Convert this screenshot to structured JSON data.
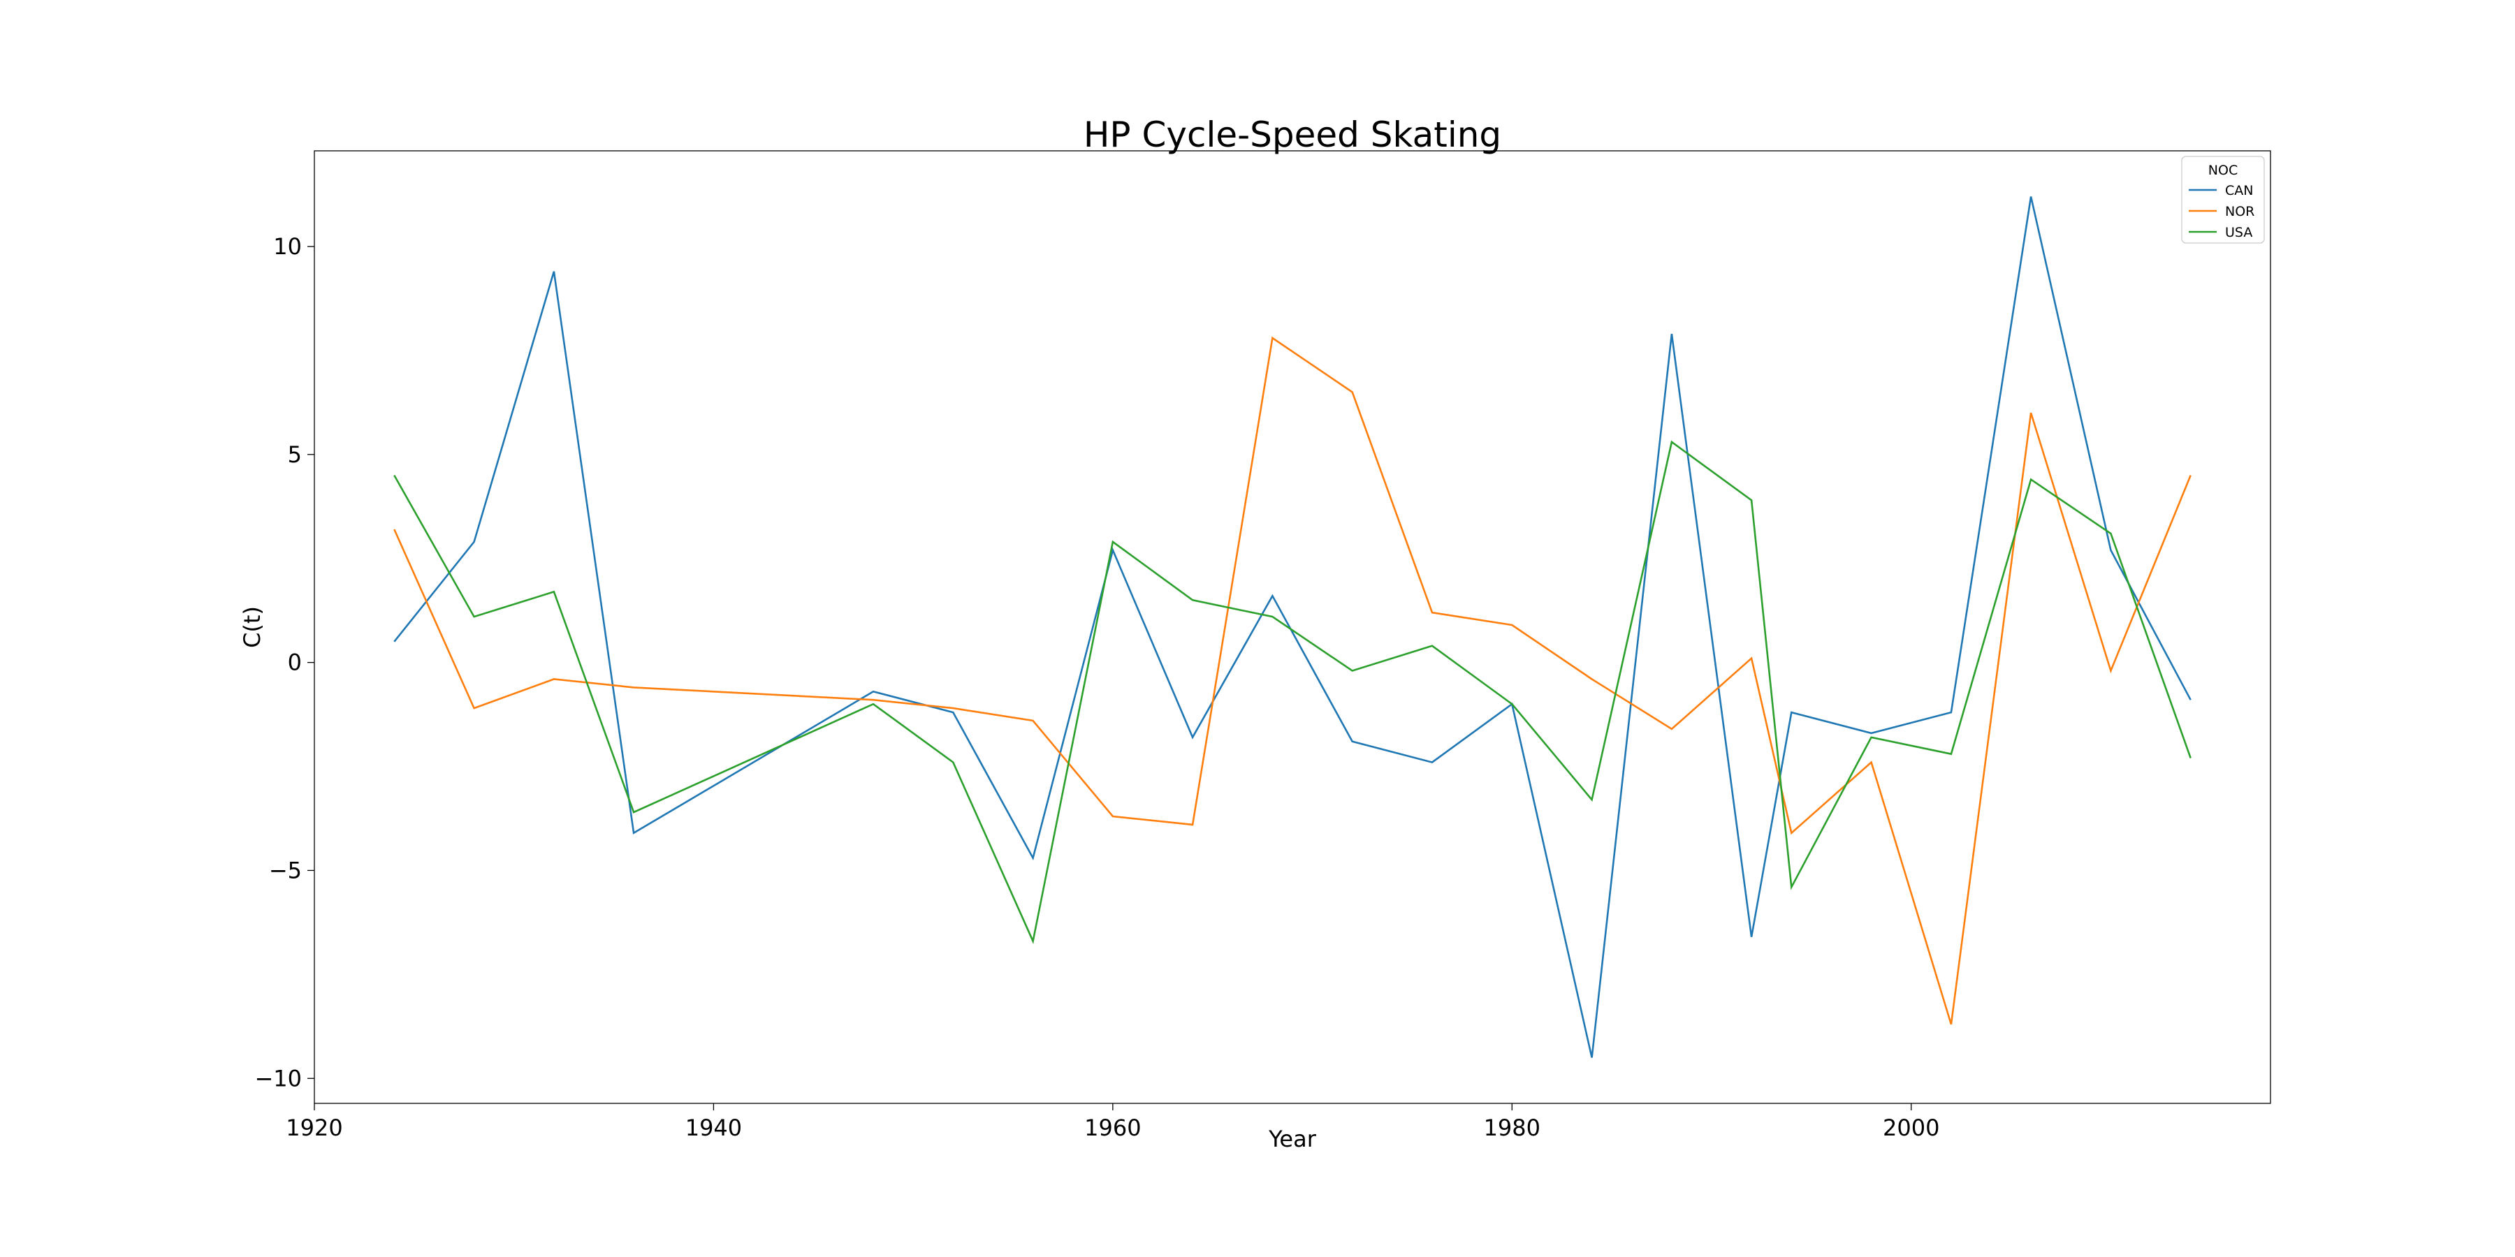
{
  "chart_data": {
    "type": "line",
    "title": "HP Cycle-Speed Skating",
    "xlabel": "Year",
    "ylabel": "C(t)",
    "xlim": [
      1920,
      2018
    ],
    "ylim": [
      -10.6,
      12.3
    ],
    "xticks": [
      1920,
      1940,
      1960,
      1980,
      2000
    ],
    "yticks": [
      -10,
      -5,
      0,
      5,
      10
    ],
    "grid": false,
    "legend": {
      "title": "NOC",
      "placement": "top-right"
    },
    "series": [
      {
        "name": "CAN",
        "color": "#1f77b4",
        "x": [
          1924,
          1928,
          1932,
          1936,
          1948,
          1952,
          1956,
          1960,
          1964,
          1968,
          1972,
          1976,
          1980,
          1984,
          1988,
          1992,
          1994,
          1998,
          2002,
          2006,
          2010,
          2014
        ],
        "y": [
          0.5,
          2.9,
          9.4,
          -4.1,
          -0.7,
          -1.2,
          -4.7,
          2.7,
          -1.8,
          1.6,
          -1.9,
          -2.4,
          -1.0,
          -9.5,
          7.9,
          -6.6,
          -1.2,
          -1.7,
          -1.2,
          11.2,
          2.7,
          -0.9
        ]
      },
      {
        "name": "NOR",
        "color": "#ff7f0e",
        "x": [
          1924,
          1928,
          1932,
          1936,
          1948,
          1952,
          1956,
          1960,
          1964,
          1968,
          1972,
          1976,
          1980,
          1984,
          1988,
          1992,
          1994,
          1998,
          2002,
          2006,
          2010,
          2014
        ],
        "y": [
          3.2,
          -1.1,
          -0.4,
          -0.6,
          -0.9,
          -1.1,
          -1.4,
          -3.7,
          -3.9,
          7.8,
          6.5,
          1.2,
          0.9,
          -0.4,
          -1.6,
          0.1,
          -4.1,
          -2.4,
          -8.7,
          6.0,
          -0.2,
          4.5
        ]
      },
      {
        "name": "USA",
        "color": "#2ca02c",
        "x": [
          1924,
          1928,
          1932,
          1936,
          1948,
          1952,
          1956,
          1960,
          1964,
          1968,
          1972,
          1976,
          1980,
          1984,
          1988,
          1992,
          1994,
          1998,
          2002,
          2006,
          2010,
          2014
        ],
        "y": [
          4.5,
          1.1,
          1.7,
          -3.6,
          -1.0,
          -2.4,
          -6.7,
          2.9,
          1.5,
          1.1,
          -0.2,
          0.4,
          -1.0,
          -3.3,
          5.3,
          3.9,
          -5.4,
          -1.8,
          -2.2,
          4.4,
          3.1,
          -2.3
        ]
      }
    ]
  }
}
